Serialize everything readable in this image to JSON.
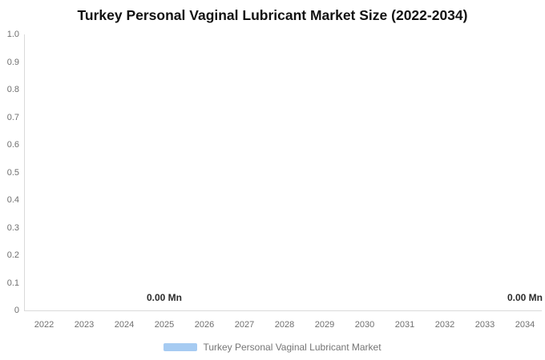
{
  "colors": {
    "bar_accent": "#a6cbf2",
    "axis_line": "#dadada",
    "tick_text": "#6f6f6f",
    "data_label_text": "#2b2b2b",
    "legend_text": "#757575",
    "title_text": "#121212",
    "background": "#ffffff"
  },
  "chart_data": {
    "type": "bar",
    "title": "Turkey Personal Vaginal Lubricant Market Size (2022-2034)",
    "xlabel": "",
    "ylabel": "",
    "categories": [
      "2022",
      "2023",
      "2024",
      "2025",
      "2026",
      "2027",
      "2028",
      "2029",
      "2030",
      "2031",
      "2032",
      "2033",
      "2034"
    ],
    "series": [
      {
        "name": "Turkey Personal Vaginal Lubricant Market",
        "values": [
          0,
          0,
          0,
          0,
          0,
          0,
          0,
          0,
          0,
          0,
          0,
          0,
          0
        ]
      }
    ],
    "ylim": [
      0,
      1
    ],
    "y_ticks": [
      "1.0",
      "0.9",
      "0.8",
      "0.7",
      "0.6",
      "0.5",
      "0.4",
      "0.3",
      "0.2",
      "0.1",
      "0"
    ],
    "grid": false,
    "legend_position": "bottom",
    "visible_data_labels": [
      {
        "category": "2025",
        "text": "0.00 Mn"
      },
      {
        "category": "2034",
        "text": "0.00 Mn"
      }
    ]
  },
  "legend": {
    "label": "Turkey Personal Vaginal Lubricant Market"
  }
}
